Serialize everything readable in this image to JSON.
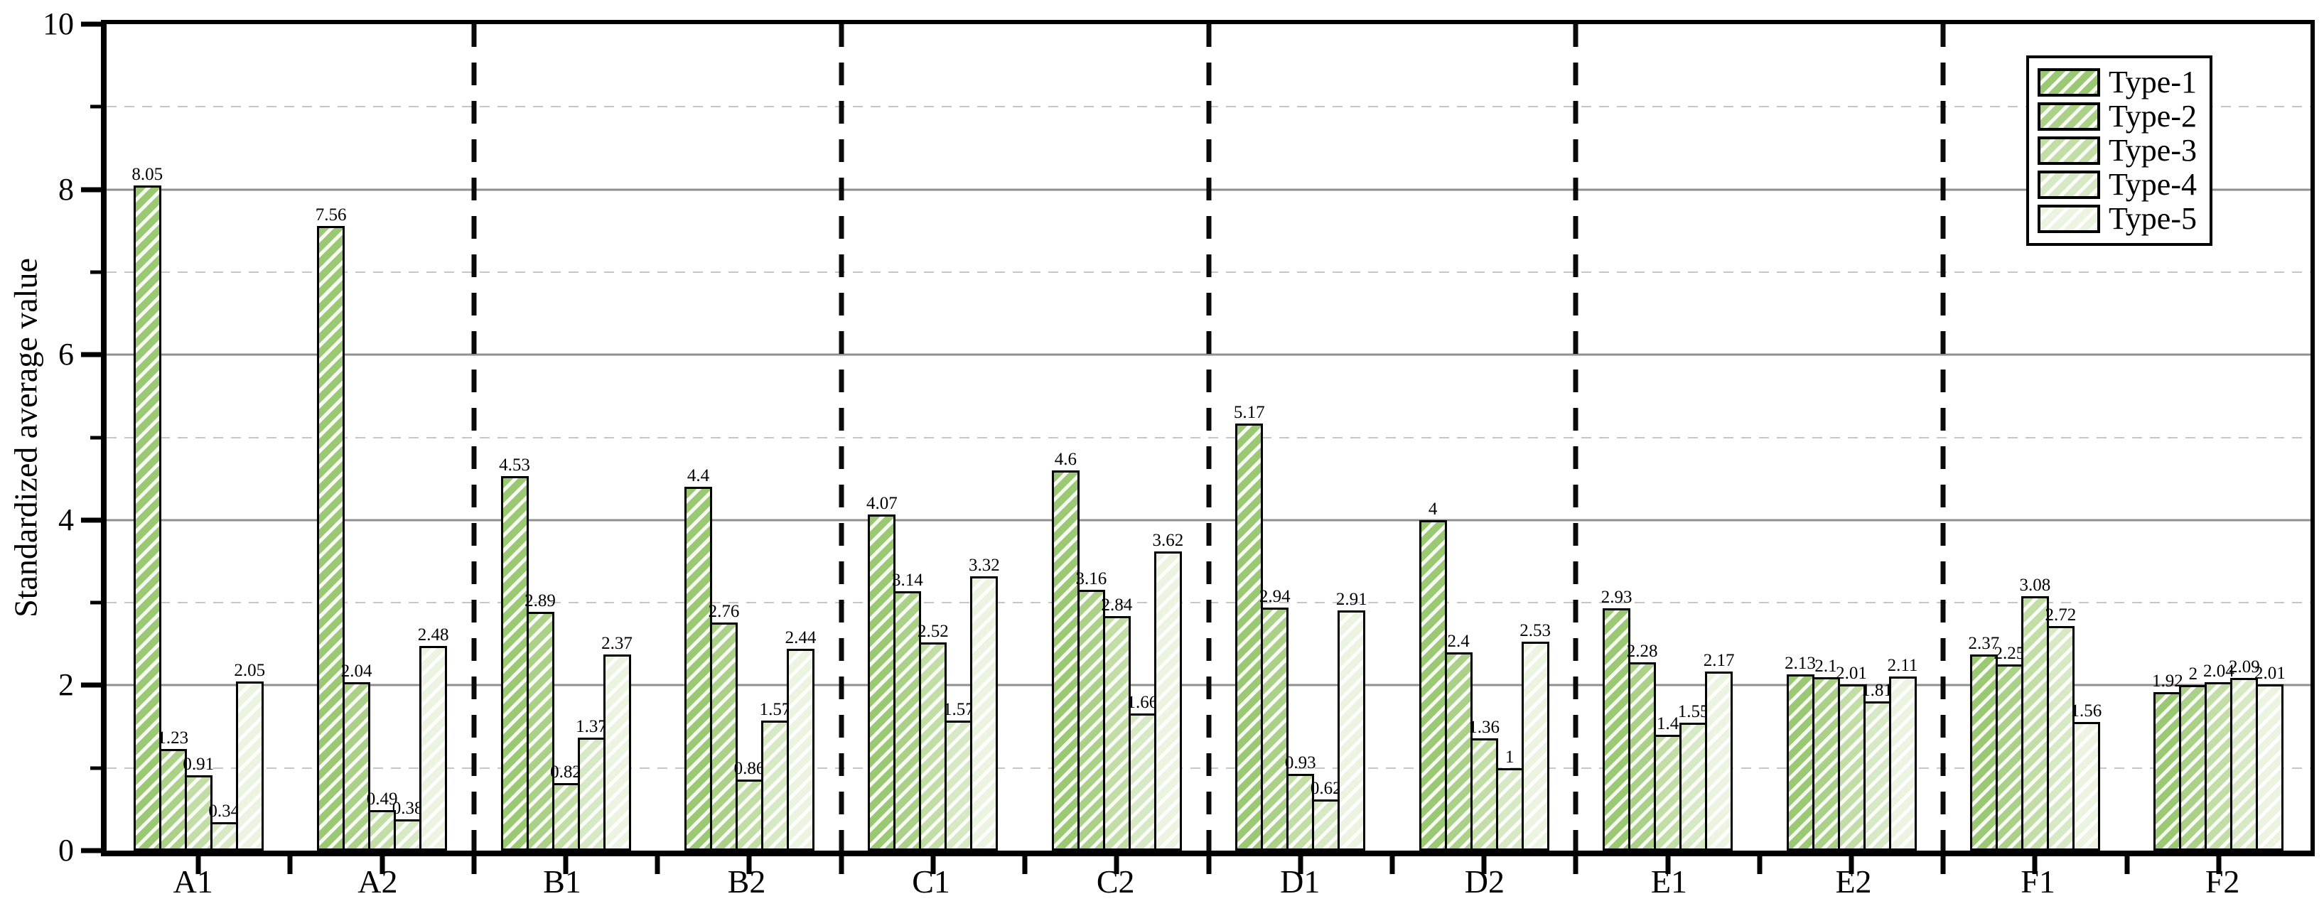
{
  "chart_data": {
    "type": "bar",
    "title": "",
    "xlabel": "",
    "ylabel": "Standardized average value",
    "ylim": [
      0,
      10
    ],
    "yticks_major": [
      0,
      2,
      4,
      6,
      8,
      10
    ],
    "yticks_minor": [
      1,
      3,
      5,
      7,
      9
    ],
    "grid": "horizontal, solid gray at even values, dashed light gray at odd values",
    "legend_position": "top-right",
    "hatch": "/",
    "bar_edge_color": "#000000",
    "separator_style": "black dashed vertical line",
    "separators_after_category_index": [
      1,
      3,
      5,
      7,
      9
    ],
    "categories": [
      "A1",
      "A2",
      "B1",
      "B2",
      "C1",
      "C2",
      "D1",
      "D2",
      "E1",
      "E2",
      "F1",
      "F2"
    ],
    "series": [
      {
        "name": "Type-1",
        "color": "#9ac873",
        "values": [
          8.05,
          7.56,
          4.53,
          4.4,
          4.07,
          4.6,
          5.17,
          4,
          2.93,
          2.13,
          2.37,
          1.92
        ]
      },
      {
        "name": "Type-2",
        "color": "#abd189",
        "values": [
          1.23,
          2.04,
          2.89,
          2.76,
          3.14,
          3.16,
          2.94,
          2.4,
          2.28,
          2.1,
          2.25,
          2
        ]
      },
      {
        "name": "Type-3",
        "color": "#c2dda6",
        "values": [
          0.91,
          0.49,
          0.82,
          0.86,
          2.52,
          2.84,
          0.93,
          1.36,
          1.4,
          2.01,
          3.08,
          2.04
        ]
      },
      {
        "name": "Type-4",
        "color": "#d7e8c4",
        "values": [
          0.34,
          0.38,
          1.37,
          1.57,
          1.57,
          1.66,
          0.62,
          1,
          1.55,
          1.81,
          2.72,
          2.09
        ]
      },
      {
        "name": "Type-5",
        "color": "#eaf4e0",
        "values": [
          2.05,
          2.48,
          2.37,
          2.44,
          3.32,
          3.62,
          2.91,
          2.53,
          2.17,
          2.11,
          1.56,
          2.01
        ]
      }
    ]
  }
}
